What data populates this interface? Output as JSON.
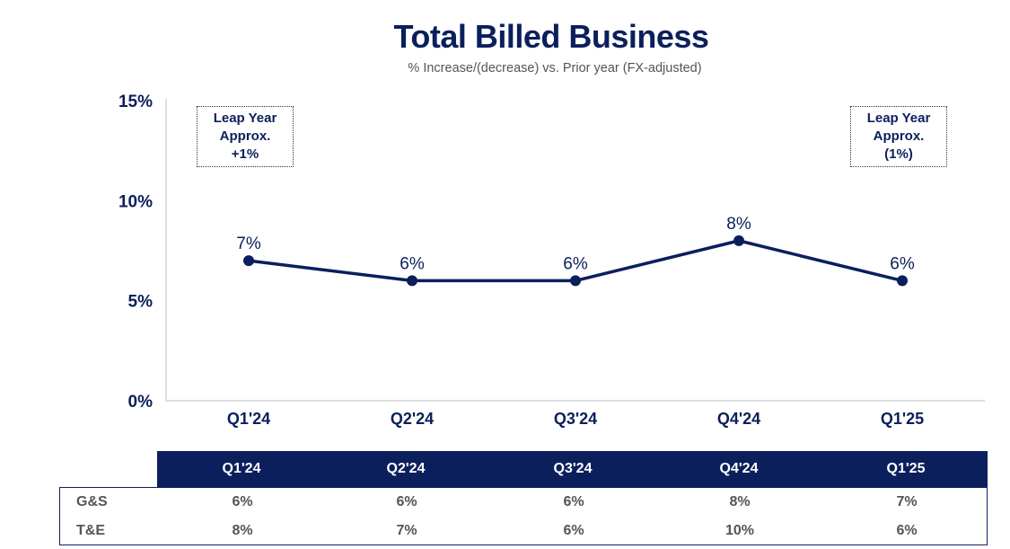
{
  "header": {
    "title": "Total Billed Business",
    "subtitle": "% Increase/(decrease) vs. Prior year (FX-adjusted)"
  },
  "chart_data": {
    "type": "line",
    "title": "Total Billed Business",
    "subtitle": "% Increase/(decrease) vs. Prior year (FX-adjusted)",
    "categories": [
      "Q1'24",
      "Q2'24",
      "Q3'24",
      "Q4'24",
      "Q1'25"
    ],
    "series": [
      {
        "name": "Total Billed Business",
        "values": [
          7,
          6,
          6,
          8,
          6
        ],
        "labels": [
          "7%",
          "6%",
          "6%",
          "8%",
          "6%"
        ]
      }
    ],
    "ylim": [
      0,
      15
    ],
    "yticks": [
      0,
      5,
      10,
      15
    ],
    "ytick_labels": [
      "0%",
      "5%",
      "10%",
      "15%"
    ],
    "grid": false,
    "line_color": "#0b1f5c",
    "annotations": [
      {
        "position": "top-left",
        "lines": [
          "Leap Year",
          "Approx.",
          "+1%"
        ]
      },
      {
        "position": "top-right",
        "lines": [
          "Leap Year",
          "Approx.",
          "(1%)"
        ]
      }
    ]
  },
  "table": {
    "columns": [
      "Q1'24",
      "Q2'24",
      "Q3'24",
      "Q4'24",
      "Q1'25"
    ],
    "rows": [
      {
        "label": "G&S",
        "values": [
          "6%",
          "6%",
          "6%",
          "8%",
          "7%"
        ]
      },
      {
        "label": "T&E",
        "values": [
          "8%",
          "7%",
          "6%",
          "10%",
          "6%"
        ]
      }
    ]
  },
  "colors": {
    "navy": "#0b1f5c",
    "gray_text": "#555555"
  }
}
